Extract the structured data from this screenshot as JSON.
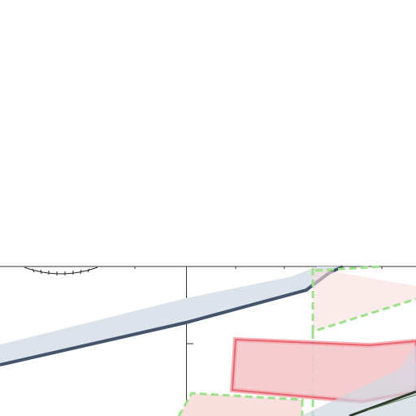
{
  "map": {
    "background_color": "#ffffff",
    "layers": [
      {
        "id": "road-band",
        "kind": "road",
        "fill": "#dce3ea",
        "stroke": "#44546a"
      },
      {
        "id": "zone-red",
        "kind": "zone",
        "fill": "#f7c8cc",
        "stroke": "#e8666f"
      },
      {
        "id": "zone-green",
        "kind": "zone-dashed",
        "fill": "#f9dede",
        "stroke": "#9be28a"
      },
      {
        "id": "route-line",
        "kind": "route",
        "stroke": "#2e3b2c"
      }
    ],
    "scale_ruler": {
      "orientation": "horizontal",
      "icon": "arc-ruler"
    },
    "axis": {
      "has_vertical_tick": true
    }
  }
}
